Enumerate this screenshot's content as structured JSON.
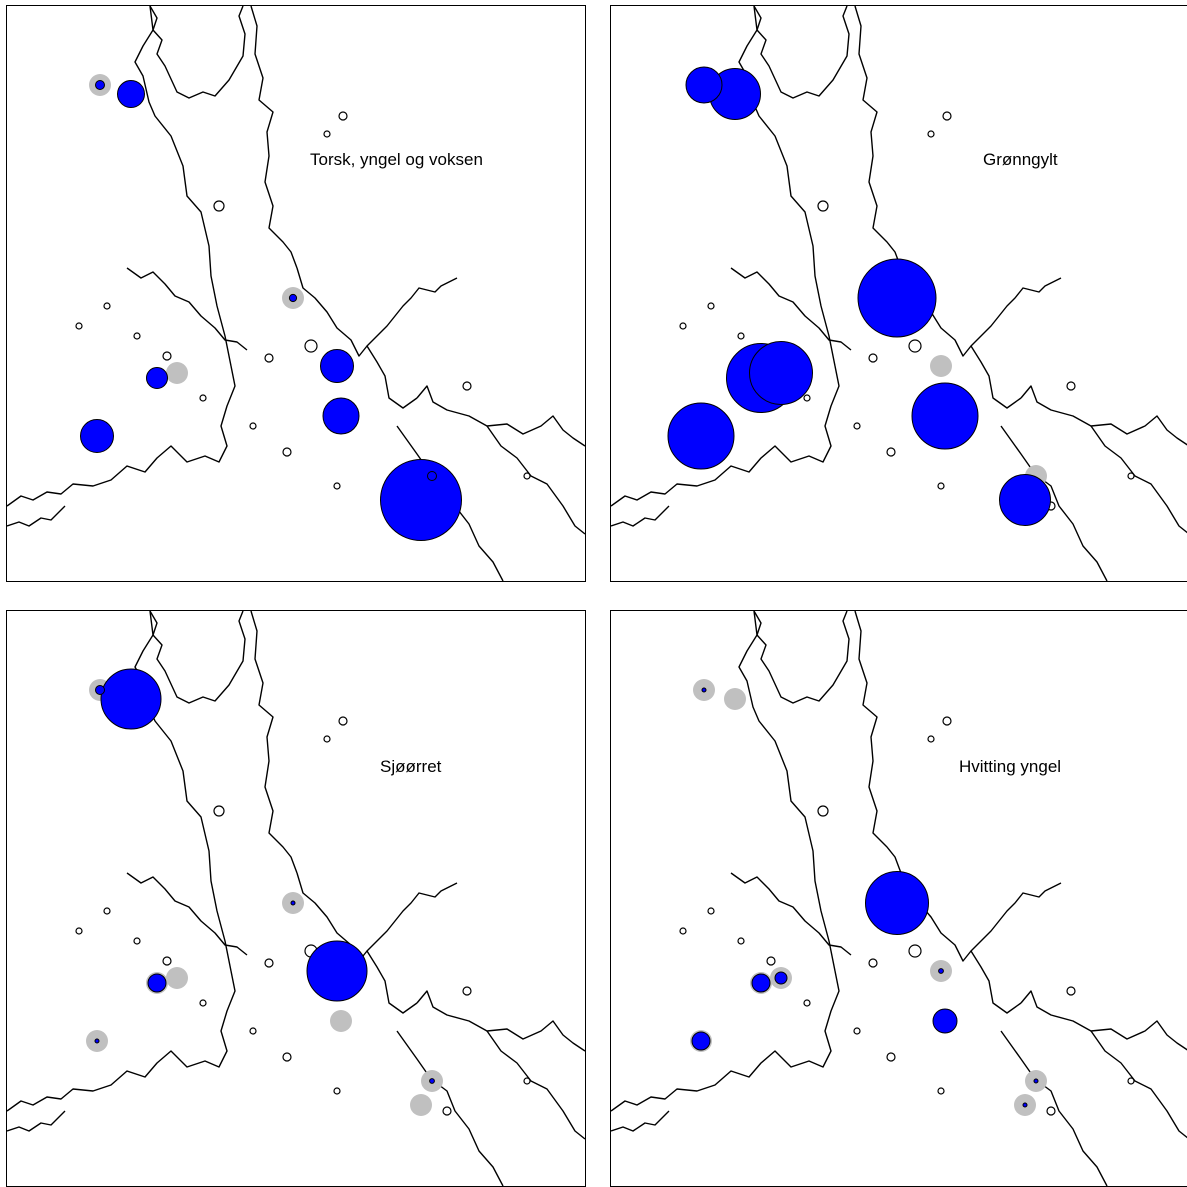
{
  "colors": {
    "catch": "#0000ff",
    "station": "#c0c0c0",
    "coast": "#000000"
  },
  "panels": [
    {
      "title": "Torsk, yngel og voksen",
      "catches": [
        {
          "station": "A",
          "size": 0.15
        },
        {
          "station": "B",
          "size": 0.45
        },
        {
          "station": "C",
          "size": 0.55
        },
        {
          "station": "E",
          "size": 0.35
        },
        {
          "station": "F",
          "size": 0.12
        },
        {
          "station": "G",
          "size": 0.55
        },
        {
          "station": "H",
          "size": 0.6
        },
        {
          "station": "I",
          "size": 0.15
        },
        {
          "station": "J",
          "size": 1.35
        }
      ]
    },
    {
      "title": "Grønngylt",
      "catches": [
        {
          "station": "A",
          "size": 0.6
        },
        {
          "station": "B",
          "size": 0.85
        },
        {
          "station": "C",
          "size": 1.1
        },
        {
          "station": "D",
          "size": 1.05
        },
        {
          "station": "E",
          "size": 1.15
        },
        {
          "station": "F",
          "size": 1.3
        },
        {
          "station": "H",
          "size": 1.1
        },
        {
          "station": "J",
          "size": 0.85
        }
      ]
    },
    {
      "title": "Sjøørret",
      "catches": [
        {
          "station": "A",
          "size": 0.15
        },
        {
          "station": "B",
          "size": 1.0
        },
        {
          "station": "C",
          "size": 0.06
        },
        {
          "station": "E",
          "size": 0.3
        },
        {
          "station": "F",
          "size": 0.06
        },
        {
          "station": "G",
          "size": 1.0
        },
        {
          "station": "I",
          "size": 0.08
        }
      ]
    },
    {
      "title": "Hvitting yngel",
      "catches": [
        {
          "station": "A",
          "size": 0.04
        },
        {
          "station": "C",
          "size": 0.3
        },
        {
          "station": "D",
          "size": 0.2
        },
        {
          "station": "E",
          "size": 0.3
        },
        {
          "station": "F",
          "size": 1.05
        },
        {
          "station": "G",
          "size": 0.08
        },
        {
          "station": "H",
          "size": 0.4
        },
        {
          "station": "I",
          "size": 0.04
        },
        {
          "station": "J",
          "size": 0.04
        }
      ]
    }
  ]
}
